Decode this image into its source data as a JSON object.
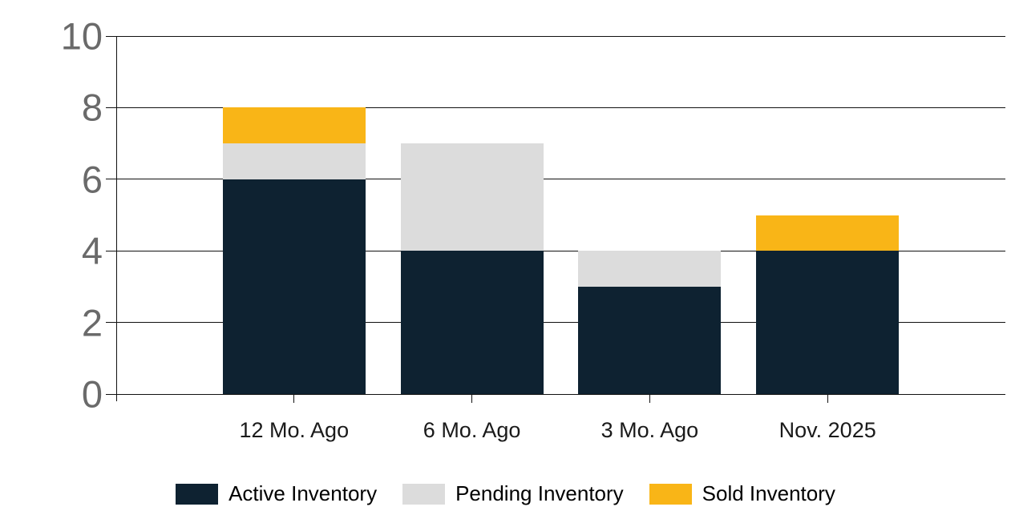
{
  "chart_data": {
    "type": "bar",
    "stacked": true,
    "title": "",
    "xlabel": "",
    "ylabel": "",
    "categories": [
      "12 Mo. Ago",
      "6 Mo. Ago",
      "3 Mo. Ago",
      "Nov. 2025"
    ],
    "series": [
      {
        "name": "Active Inventory",
        "color": "#0e2231",
        "values": [
          6,
          4,
          3,
          4
        ]
      },
      {
        "name": "Pending Inventory",
        "color": "#dcdcdc",
        "values": [
          1,
          3,
          1,
          0
        ]
      },
      {
        "name": "Sold Inventory",
        "color": "#f9b517",
        "values": [
          1,
          0,
          0,
          1
        ]
      }
    ],
    "totals": [
      8,
      7,
      4,
      5
    ],
    "ylim": [
      0,
      10
    ],
    "yticks": [
      0,
      2,
      4,
      6,
      8,
      10
    ],
    "grid": true,
    "legend_position": "bottom"
  },
  "colors": {
    "background": "#ffffff",
    "gridline": "#111111",
    "y_tick_label": "#6a6a6a",
    "x_tick_label": "#1a1a1a",
    "legend_text": "#000000"
  }
}
